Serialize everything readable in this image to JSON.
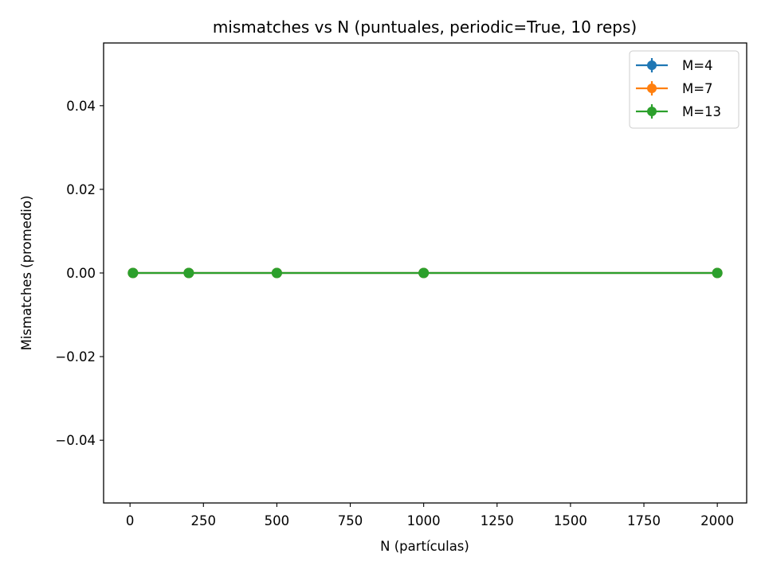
{
  "chart_data": {
    "type": "line",
    "title": "mismatches vs N (puntuales, periodic=True, 10 reps)",
    "xlabel": "N (partículas)",
    "ylabel": "Mismatches (promedio)",
    "x": [
      10,
      200,
      500,
      1000,
      2000
    ],
    "xlim": [
      -90,
      2100
    ],
    "ylim": [
      -0.055,
      0.055
    ],
    "xticks": [
      0,
      250,
      500,
      750,
      1000,
      1250,
      1500,
      1750,
      2000
    ],
    "xtick_labels": [
      "0",
      "250",
      "500",
      "750",
      "1000",
      "1250",
      "1500",
      "1750",
      "2000"
    ],
    "yticks": [
      -0.04,
      -0.02,
      0.0,
      0.02,
      0.04
    ],
    "ytick_labels": [
      "−0.04",
      "−0.02",
      "0.00",
      "0.02",
      "0.04"
    ],
    "grid": false,
    "legend_position": "top-right",
    "markers": "circle",
    "error_bars": true,
    "series": [
      {
        "name": "M=4",
        "color": "#1f77b4",
        "values": [
          0,
          0,
          0,
          0,
          0
        ],
        "errors": [
          0,
          0,
          0,
          0,
          0
        ]
      },
      {
        "name": "M=7",
        "color": "#ff7f0e",
        "values": [
          0,
          0,
          0,
          0,
          0
        ],
        "errors": [
          0,
          0,
          0,
          0,
          0
        ]
      },
      {
        "name": "M=13",
        "color": "#2ca02c",
        "values": [
          0,
          0,
          0,
          0,
          0
        ],
        "errors": [
          0,
          0,
          0,
          0,
          0
        ]
      }
    ]
  }
}
